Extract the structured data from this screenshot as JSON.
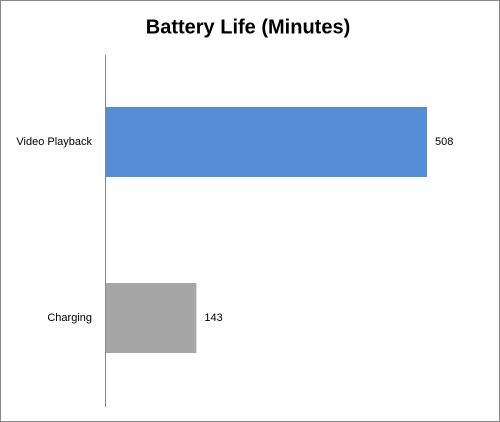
{
  "chart_data": {
    "type": "bar",
    "orientation": "horizontal",
    "title": "Battery Life (Minutes)",
    "categories": [
      "Video Playback",
      "Charging"
    ],
    "values": [
      508,
      143
    ],
    "colors": [
      "#558ed5",
      "#a6a6a6"
    ]
  }
}
